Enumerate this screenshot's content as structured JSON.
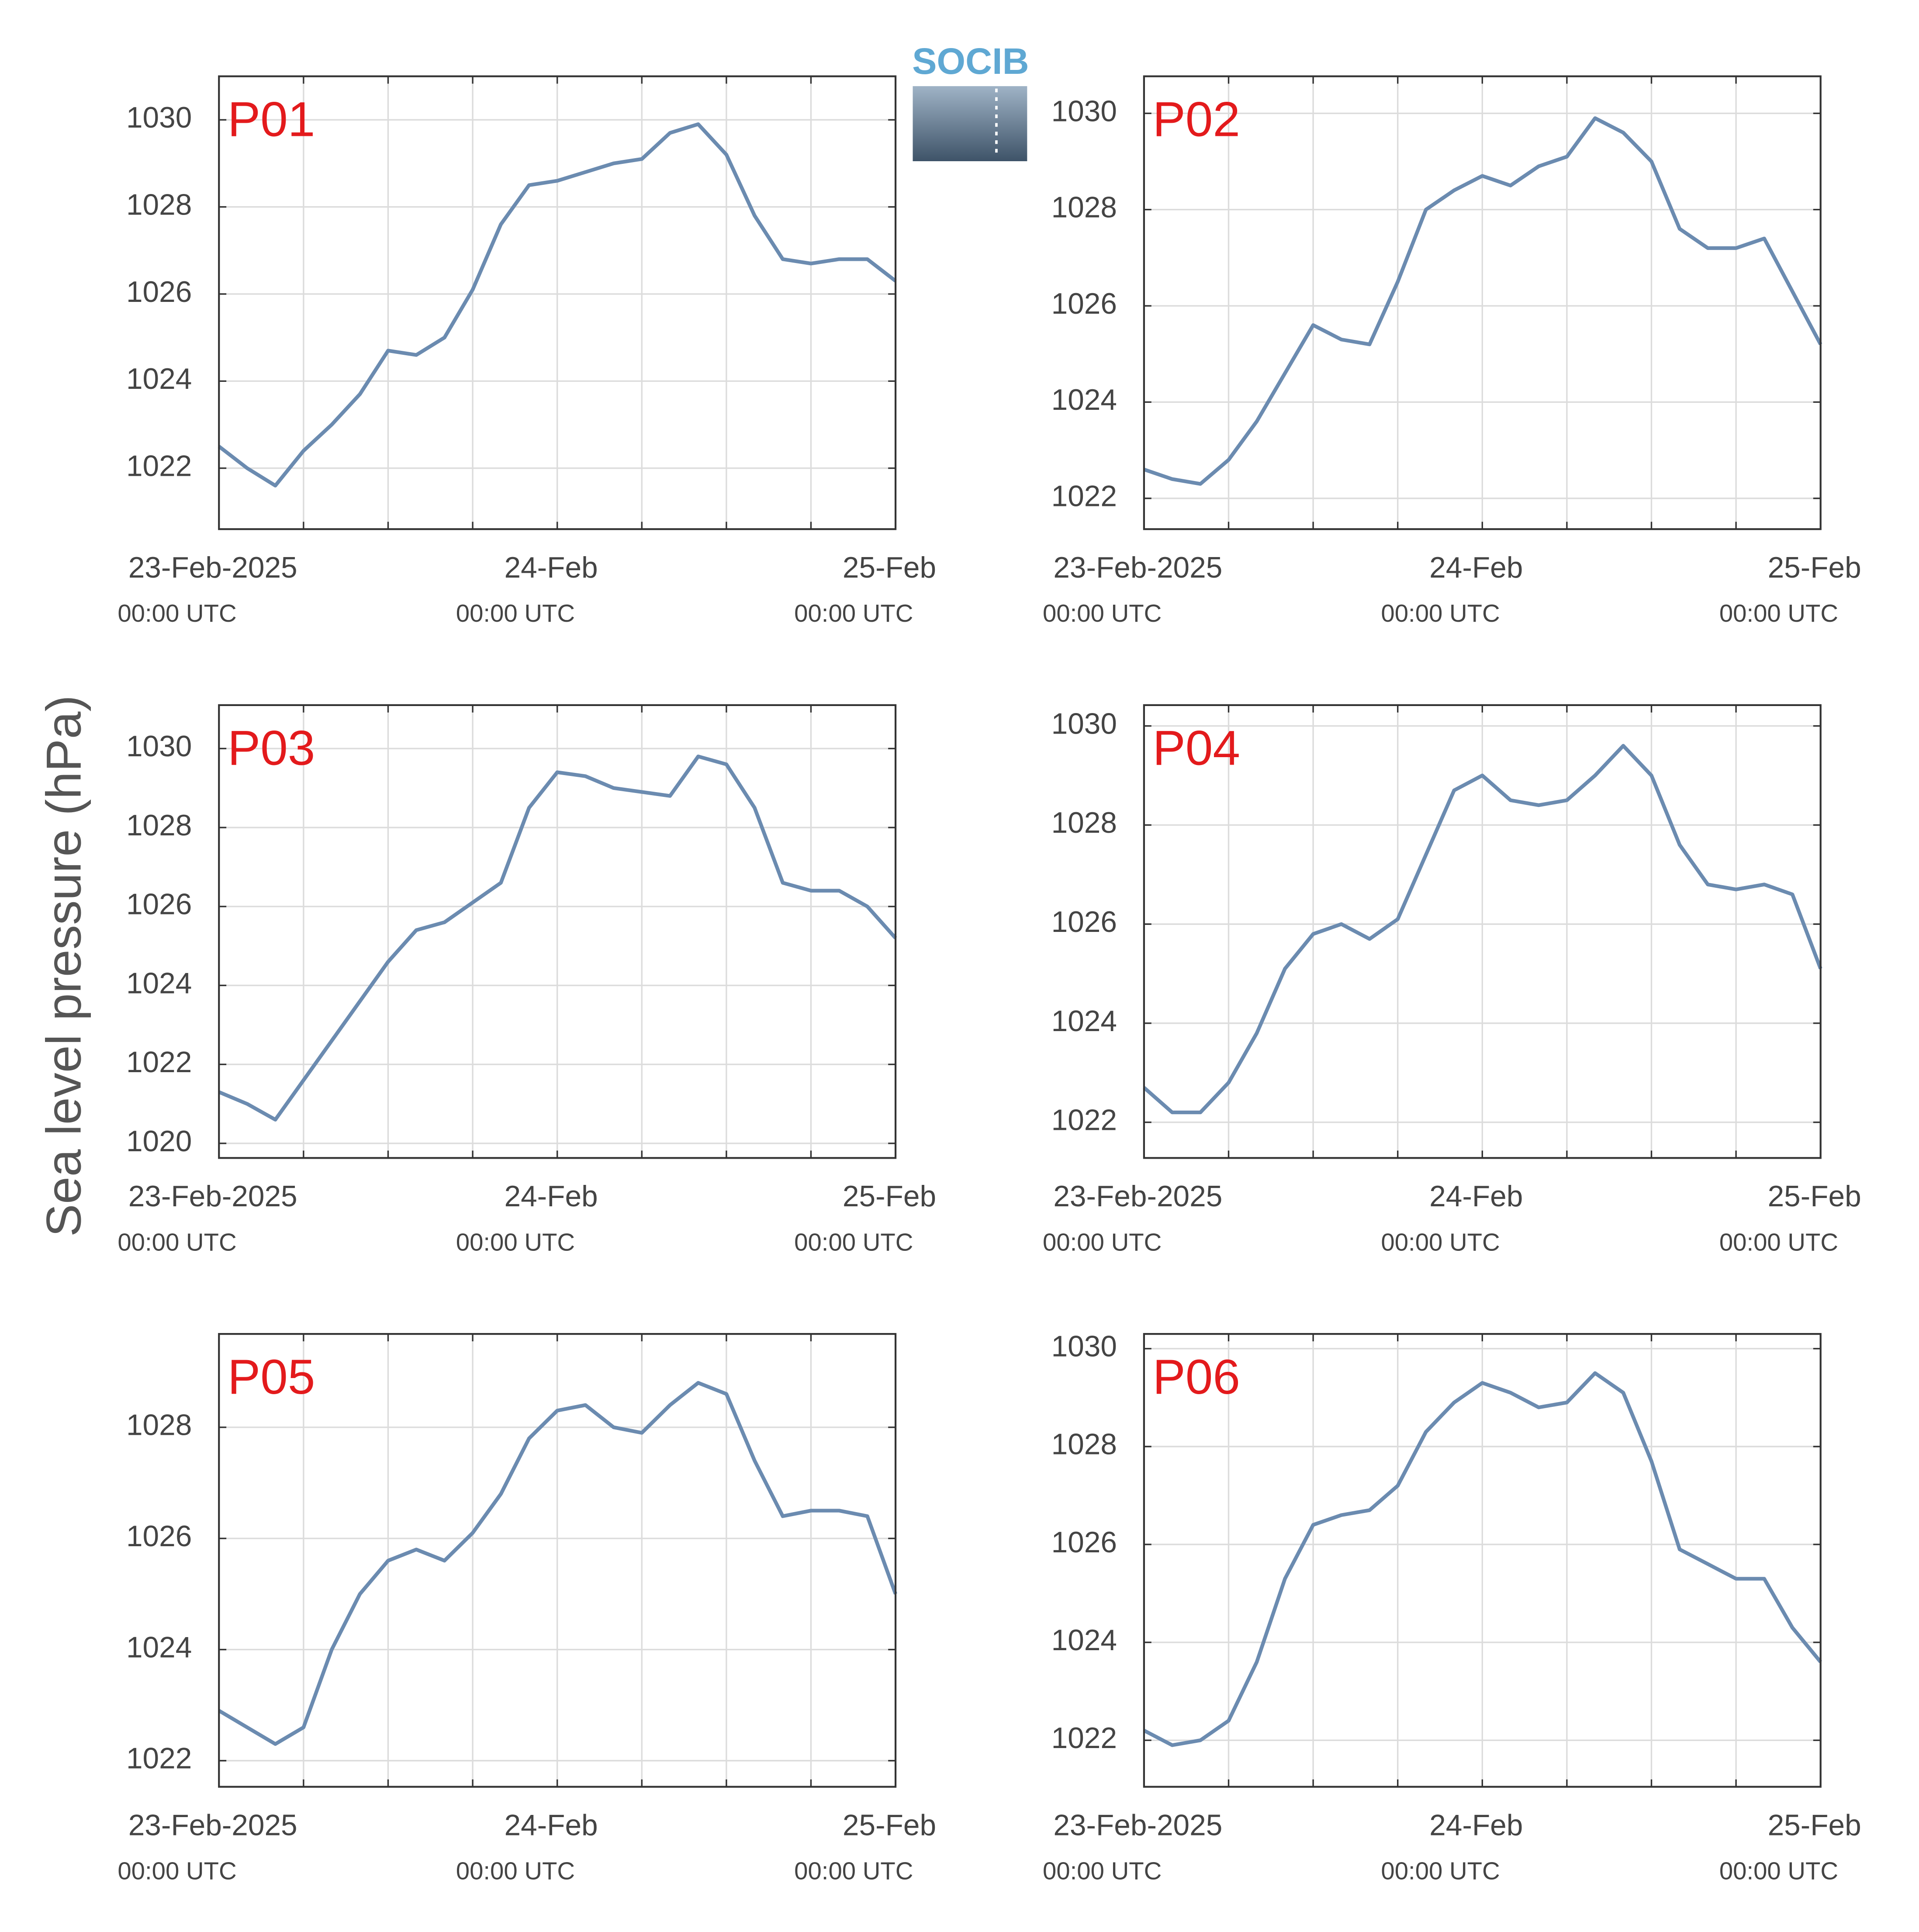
{
  "ylabel": "Sea level pressure (hPa)",
  "logo": "SOCIB",
  "chart_data": [
    {
      "type": "line",
      "title": "P01",
      "color": "#6b8bb0",
      "grid": true,
      "x": [
        0,
        2,
        4,
        6,
        8,
        10,
        12,
        14,
        16,
        18,
        20,
        22,
        24,
        26,
        28,
        30,
        32,
        34,
        36,
        38,
        40,
        42,
        44,
        46,
        48
      ],
      "values": [
        1022.5,
        1022.0,
        1021.6,
        1022.4,
        1023.0,
        1023.7,
        1024.7,
        1024.6,
        1025.0,
        1026.1,
        1027.6,
        1028.5,
        1028.6,
        1028.8,
        1029.0,
        1029.1,
        1029.7,
        1029.9,
        1029.2,
        1027.8,
        1026.8,
        1026.7,
        1026.8,
        1026.8,
        1026.3
      ],
      "xlim": [
        0,
        48
      ],
      "xticks": [
        {
          "value": 0,
          "label": "23-Feb-2025"
        },
        {
          "value": 24,
          "label": "24-Feb"
        },
        {
          "value": 48,
          "label": "25-Feb"
        }
      ],
      "xtick_sublabel": "00:00 UTC",
      "xminorticks": [
        0,
        6,
        12,
        18,
        24,
        30,
        36,
        42,
        48
      ],
      "ylim": [
        1020.6,
        1031.0
      ],
      "yticks": [
        1022,
        1024,
        1026,
        1028,
        1030
      ]
    },
    {
      "type": "line",
      "title": "P02",
      "color": "#6b8bb0",
      "grid": true,
      "x": [
        0,
        2,
        4,
        6,
        8,
        10,
        12,
        14,
        16,
        18,
        20,
        22,
        24,
        26,
        28,
        30,
        32,
        34,
        36,
        38,
        40,
        42,
        44,
        46,
        48
      ],
      "values": [
        1022.6,
        1022.4,
        1022.3,
        1022.8,
        1023.6,
        1024.6,
        1025.6,
        1025.3,
        1025.2,
        1026.5,
        1028.0,
        1028.4,
        1028.7,
        1028.5,
        1028.9,
        1029.1,
        1029.9,
        1029.6,
        1029.0,
        1027.6,
        1027.2,
        1027.2,
        1027.4,
        1026.3,
        1025.2
      ],
      "xlim": [
        0,
        48
      ],
      "xticks": [
        {
          "value": 0,
          "label": "23-Feb-2025"
        },
        {
          "value": 24,
          "label": "24-Feb"
        },
        {
          "value": 48,
          "label": "25-Feb"
        }
      ],
      "xtick_sublabel": "00:00 UTC",
      "xminorticks": [
        0,
        6,
        12,
        18,
        24,
        30,
        36,
        42,
        48
      ],
      "ylim": [
        1021.36,
        1030.77
      ],
      "yticks": [
        1022,
        1024,
        1026,
        1028,
        1030
      ]
    },
    {
      "type": "line",
      "title": "P03",
      "color": "#6b8bb0",
      "grid": true,
      "x": [
        0,
        2,
        4,
        6,
        8,
        10,
        12,
        14,
        16,
        18,
        20,
        22,
        24,
        26,
        28,
        30,
        32,
        34,
        36,
        38,
        40,
        42,
        44,
        46,
        48
      ],
      "values": [
        1021.3,
        1021.0,
        1020.6,
        1021.6,
        1022.6,
        1023.6,
        1024.6,
        1025.4,
        1025.6,
        1026.1,
        1026.6,
        1028.5,
        1029.4,
        1029.3,
        1029.0,
        1028.9,
        1028.8,
        1029.8,
        1029.6,
        1028.5,
        1026.6,
        1026.4,
        1026.4,
        1026.0,
        1025.2
      ],
      "xlim": [
        0,
        48
      ],
      "xticks": [
        {
          "value": 0,
          "label": "23-Feb-2025"
        },
        {
          "value": 24,
          "label": "24-Feb"
        },
        {
          "value": 48,
          "label": "25-Feb"
        }
      ],
      "xtick_sublabel": "00:00 UTC",
      "xminorticks": [
        0,
        6,
        12,
        18,
        24,
        30,
        36,
        42,
        48
      ],
      "ylim": [
        1019.63,
        1031.1
      ],
      "yticks": [
        1020,
        1022,
        1024,
        1026,
        1028,
        1030
      ]
    },
    {
      "type": "line",
      "title": "P04",
      "color": "#6b8bb0",
      "grid": true,
      "x": [
        0,
        2,
        4,
        6,
        8,
        10,
        12,
        14,
        16,
        18,
        20,
        22,
        24,
        26,
        28,
        30,
        32,
        34,
        36,
        38,
        40,
        42,
        44,
        46,
        48
      ],
      "values": [
        1022.7,
        1022.2,
        1022.2,
        1022.8,
        1023.8,
        1025.1,
        1025.8,
        1026.0,
        1025.7,
        1026.1,
        1027.4,
        1028.7,
        1029.0,
        1028.5,
        1028.4,
        1028.5,
        1029.0,
        1029.6,
        1029.0,
        1027.6,
        1026.8,
        1026.7,
        1026.8,
        1026.6,
        1025.1
      ],
      "xlim": [
        0,
        48
      ],
      "xticks": [
        {
          "value": 0,
          "label": "23-Feb-2025"
        },
        {
          "value": 24,
          "label": "24-Feb"
        },
        {
          "value": 48,
          "label": "25-Feb"
        }
      ],
      "xtick_sublabel": "00:00 UTC",
      "xminorticks": [
        0,
        6,
        12,
        18,
        24,
        30,
        36,
        42,
        48
      ],
      "ylim": [
        1021.28,
        1030.42
      ],
      "yticks": [
        1022,
        1024,
        1026,
        1028,
        1030
      ]
    },
    {
      "type": "line",
      "title": "P05",
      "color": "#6b8bb0",
      "grid": true,
      "x": [
        0,
        2,
        4,
        6,
        8,
        10,
        12,
        14,
        16,
        18,
        20,
        22,
        24,
        26,
        28,
        30,
        32,
        34,
        36,
        38,
        40,
        42,
        44,
        46,
        48
      ],
      "values": [
        1022.9,
        1022.6,
        1022.3,
        1022.6,
        1024.0,
        1025.0,
        1025.6,
        1025.8,
        1025.6,
        1026.1,
        1026.8,
        1027.8,
        1028.3,
        1028.4,
        1028.0,
        1027.9,
        1028.4,
        1028.8,
        1028.6,
        1027.4,
        1026.4,
        1026.5,
        1026.5,
        1026.4,
        1025.0
      ],
      "xlim": [
        0,
        48
      ],
      "xticks": [
        {
          "value": 0,
          "label": "23-Feb-2025"
        },
        {
          "value": 24,
          "label": "24-Feb"
        },
        {
          "value": 48,
          "label": "25-Feb"
        }
      ],
      "xtick_sublabel": "00:00 UTC",
      "xminorticks": [
        0,
        6,
        12,
        18,
        24,
        30,
        36,
        42,
        48
      ],
      "ylim": [
        1021.53,
        1029.68
      ],
      "yticks": [
        1022,
        1024,
        1026,
        1028
      ]
    },
    {
      "type": "line",
      "title": "P06",
      "color": "#6b8bb0",
      "grid": true,
      "x": [
        0,
        2,
        4,
        6,
        8,
        10,
        12,
        14,
        16,
        18,
        20,
        22,
        24,
        26,
        28,
        30,
        32,
        34,
        36,
        38,
        40,
        42,
        44,
        46,
        48
      ],
      "values": [
        1022.2,
        1021.9,
        1022.0,
        1022.4,
        1023.6,
        1025.3,
        1026.4,
        1026.6,
        1026.7,
        1027.2,
        1028.3,
        1028.9,
        1029.3,
        1029.1,
        1028.8,
        1028.9,
        1029.5,
        1029.1,
        1027.7,
        1025.9,
        1025.6,
        1025.3,
        1025.3,
        1024.3,
        1023.6
      ],
      "xlim": [
        0,
        48
      ],
      "xticks": [
        {
          "value": 0,
          "label": "23-Feb-2025"
        },
        {
          "value": 24,
          "label": "24-Feb"
        },
        {
          "value": 48,
          "label": "25-Feb"
        }
      ],
      "xtick_sublabel": "00:00 UTC",
      "xminorticks": [
        0,
        6,
        12,
        18,
        24,
        30,
        36,
        42,
        48
      ],
      "ylim": [
        1021.05,
        1030.3
      ],
      "yticks": [
        1022,
        1024,
        1026,
        1028,
        1030
      ]
    }
  ]
}
